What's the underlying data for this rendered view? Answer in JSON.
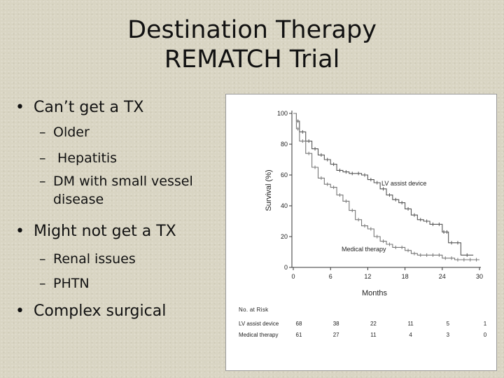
{
  "slide": {
    "title_line1": "Destination Therapy",
    "title_line2": "REMATCH Trial"
  },
  "bullets": [
    {
      "text": "Can’t get a TX",
      "subs": [
        "Older",
        " Hepatitis",
        "DM with small vessel",
        "disease"
      ]
    },
    {
      "text": "Might not get a TX",
      "subs": [
        "Renal issues",
        "PHTN"
      ]
    },
    {
      "text": "Complex surgical",
      "subs": []
    }
  ],
  "sub_dash": "–",
  "chart_data": {
    "type": "line",
    "xlabel": "Months",
    "ylabel": "Survival (%)",
    "xlim": [
      0,
      30
    ],
    "ylim": [
      0,
      100
    ],
    "xticks": [
      "0",
      "6",
      "12",
      "18",
      "24",
      "30"
    ],
    "yticks": [
      "0",
      "20",
      "40",
      "60",
      "80",
      "100"
    ],
    "grid": false,
    "series": [
      {
        "name": "LV assist device",
        "color": "#555555",
        "points": [
          [
            0,
            100
          ],
          [
            0.5,
            95
          ],
          [
            1,
            88
          ],
          [
            2,
            82
          ],
          [
            3,
            77
          ],
          [
            4,
            73
          ],
          [
            5,
            70
          ],
          [
            6,
            67
          ],
          [
            7,
            63
          ],
          [
            8,
            62
          ],
          [
            9,
            61
          ],
          [
            10,
            61
          ],
          [
            11,
            60
          ],
          [
            12,
            57
          ],
          [
            13,
            55
          ],
          [
            14,
            51
          ],
          [
            15,
            47
          ],
          [
            16,
            44
          ],
          [
            17,
            42
          ],
          [
            18,
            38
          ],
          [
            19,
            34
          ],
          [
            20,
            31
          ],
          [
            21,
            30
          ],
          [
            22,
            28
          ],
          [
            23,
            28
          ],
          [
            24,
            23
          ],
          [
            24.5,
            23
          ],
          [
            25,
            16
          ],
          [
            26,
            16
          ],
          [
            27,
            8
          ],
          [
            29,
            8
          ]
        ]
      },
      {
        "name": "Medical therapy",
        "color": "#777777",
        "points": [
          [
            0,
            100
          ],
          [
            0.5,
            90
          ],
          [
            1,
            82
          ],
          [
            2,
            74
          ],
          [
            3,
            65
          ],
          [
            4,
            58
          ],
          [
            5,
            54
          ],
          [
            6,
            52
          ],
          [
            7,
            47
          ],
          [
            8,
            43
          ],
          [
            9,
            37
          ],
          [
            10,
            31
          ],
          [
            11,
            27
          ],
          [
            12,
            25
          ],
          [
            13,
            20
          ],
          [
            14,
            17
          ],
          [
            15,
            15
          ],
          [
            16,
            13
          ],
          [
            17,
            13
          ],
          [
            18,
            11
          ],
          [
            19,
            9
          ],
          [
            20,
            8
          ],
          [
            21,
            8
          ],
          [
            22,
            8
          ],
          [
            23,
            8
          ],
          [
            24,
            6
          ],
          [
            25,
            6
          ],
          [
            26,
            5
          ],
          [
            27,
            5
          ],
          [
            28,
            5
          ],
          [
            29,
            5
          ],
          [
            30,
            5
          ]
        ]
      }
    ],
    "annotations": {
      "lvad_label": "LV assist device",
      "medical_label": "Medical therapy"
    },
    "at_risk": {
      "title": "No. at Risk",
      "rows": [
        {
          "label": "LV assist device",
          "values": [
            "68",
            "38",
            "22",
            "11",
            "5",
            "1"
          ]
        },
        {
          "label": "Medical therapy",
          "values": [
            "61",
            "27",
            "11",
            "4",
            "3",
            "0"
          ]
        }
      ]
    }
  }
}
